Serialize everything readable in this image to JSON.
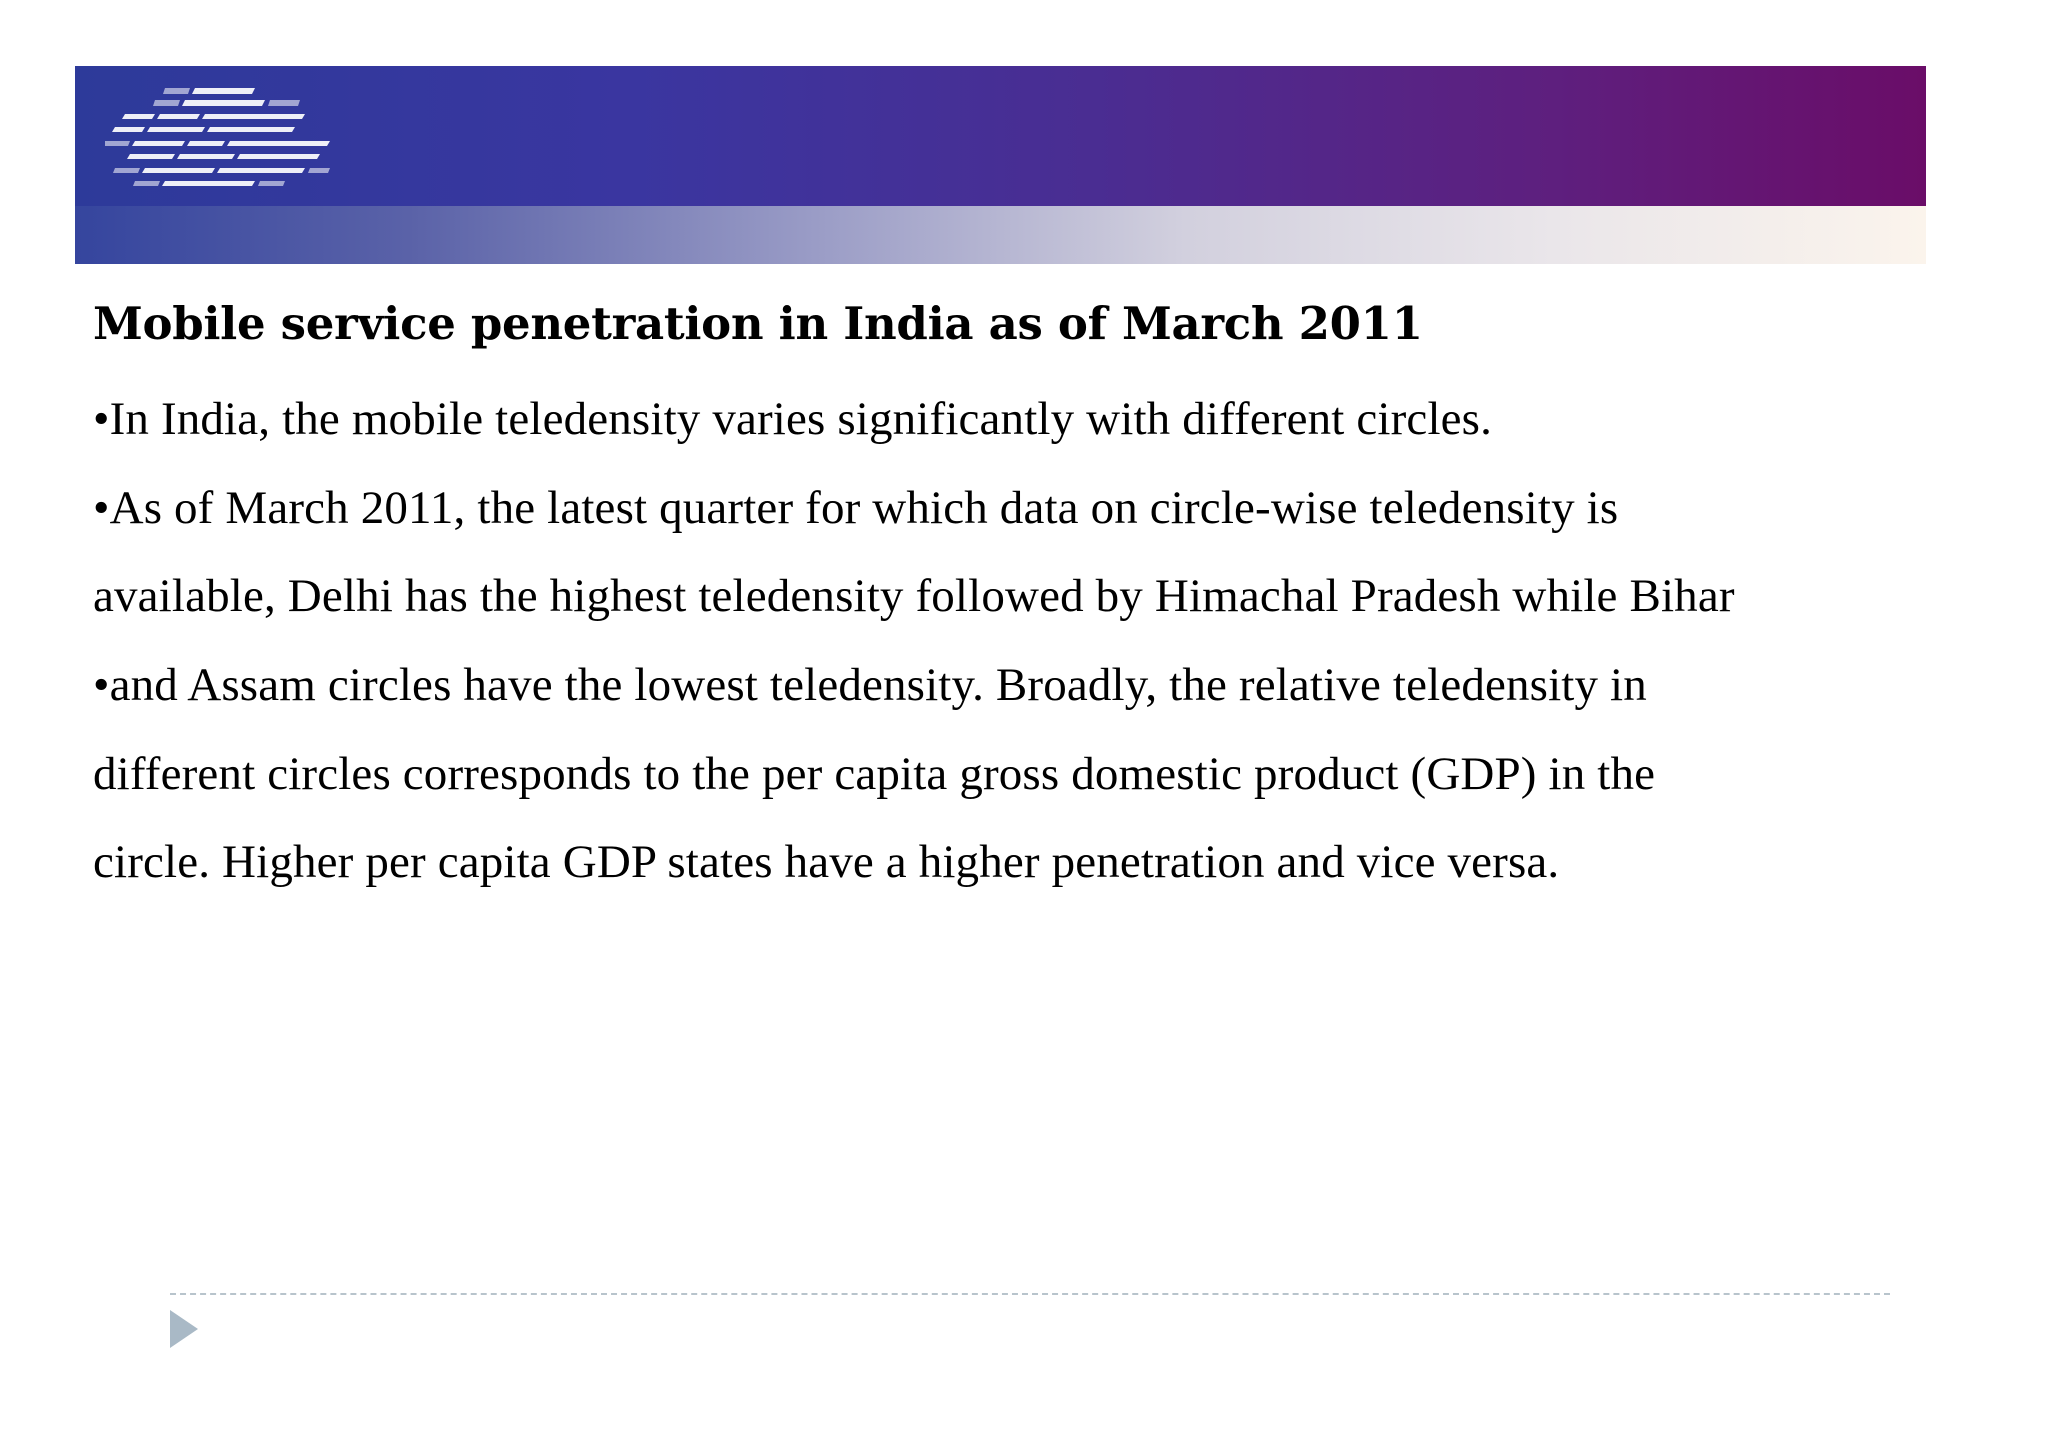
{
  "slide": {
    "title": "Mobile service penetration in India as of March 2011",
    "lines": [
      "•In India, the mobile teledensity varies significantly with different circles.",
      "•As of March 2011, the latest quarter for which data on circle-wise teledensity is",
      "available, Delhi has the highest teledensity followed by Himachal Pradesh while Bihar",
      "•and Assam circles have the lowest teledensity. Broadly, the relative teledensity in",
      "different circles corresponds to the per capita gross domestic product (GDP) in the",
      "circle. Higher per capita GDP states have a higher penetration and vice versa."
    ]
  },
  "banner": {
    "logo_icon": "striped-logo-icon",
    "colors": {
      "start": "#2d3a9a",
      "end": "#6a0d68"
    }
  },
  "footer": {
    "arrow_icon": "triangle-arrow-icon",
    "rule_color": "#b8c4cc"
  }
}
